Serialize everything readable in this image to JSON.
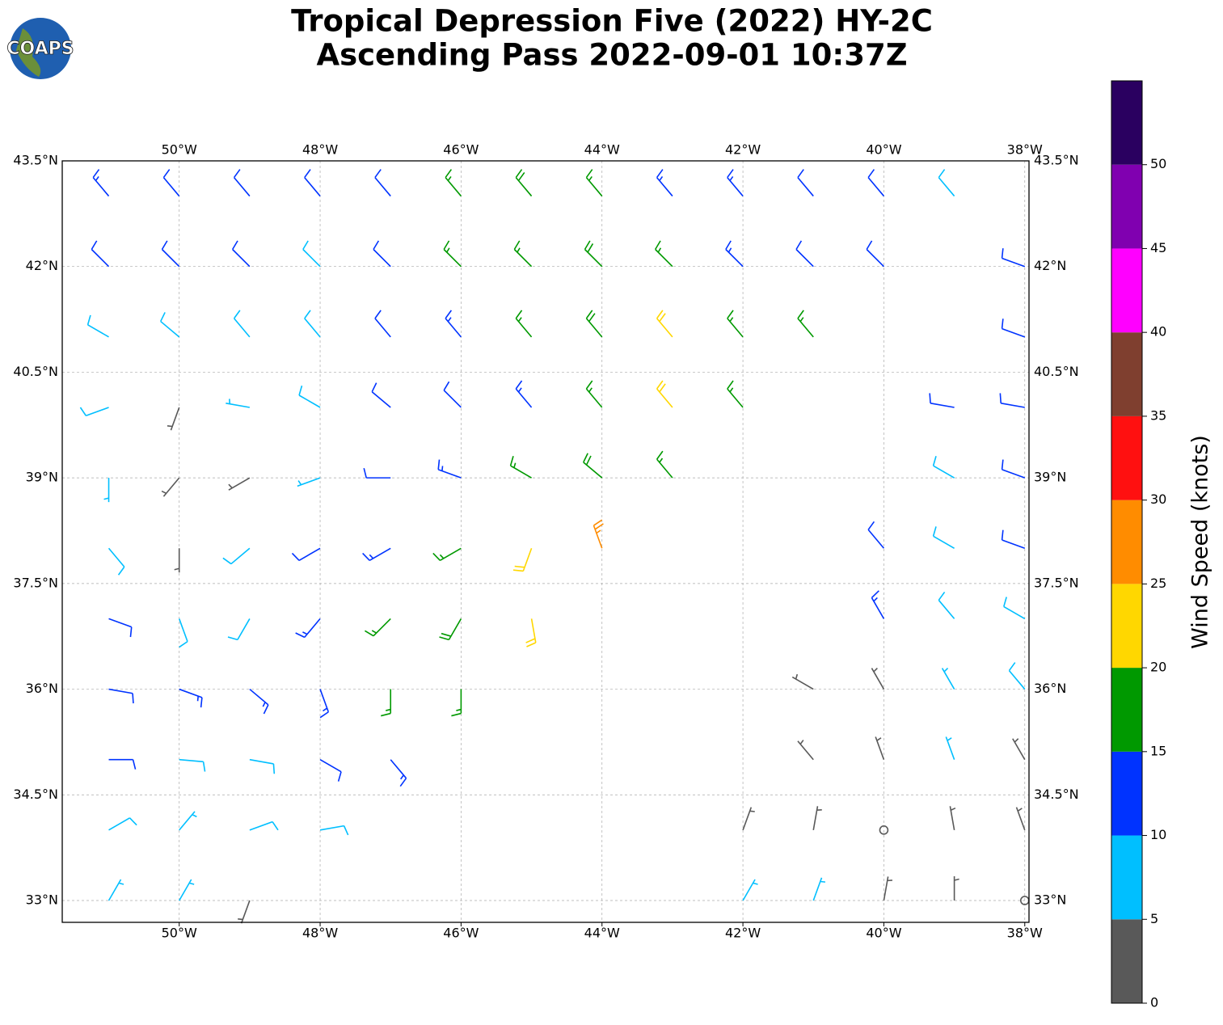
{
  "chart_data": {
    "type": "wind_barbs",
    "title": "Tropical Depression Five (2022) HY-2C",
    "subtitle": "Ascending Pass 2022-09-01 10:37Z",
    "logo_text": "COAPS",
    "xlim": [
      -51.66,
      -37.94
    ],
    "ylim": [
      32.69,
      43.5
    ],
    "xticks": [
      {
        "value": -50,
        "label": "50°W"
      },
      {
        "value": -48,
        "label": "48°W"
      },
      {
        "value": -46,
        "label": "46°W"
      },
      {
        "value": -44,
        "label": "44°W"
      },
      {
        "value": -42,
        "label": "42°W"
      },
      {
        "value": -40,
        "label": "40°W"
      },
      {
        "value": -38,
        "label": "38°W"
      }
    ],
    "yticks": [
      {
        "value": 33,
        "label": "33°N"
      },
      {
        "value": 34.5,
        "label": "34.5°N"
      },
      {
        "value": 36,
        "label": "36°N"
      },
      {
        "value": 37.5,
        "label": "37.5°N"
      },
      {
        "value": 39,
        "label": "39°N"
      },
      {
        "value": 40.5,
        "label": "40.5°N"
      },
      {
        "value": 42,
        "label": "42°N"
      },
      {
        "value": 43.5,
        "label": "43.5°N"
      }
    ],
    "grid": true,
    "colorbar": {
      "label": "Wind Speed (knots)",
      "levels": [
        0,
        5,
        10,
        15,
        20,
        25,
        30,
        35,
        40,
        45,
        50,
        55
      ],
      "colors": [
        "#595959",
        "#00bfff",
        "#0033ff",
        "#009900",
        "#ffd700",
        "#ff8c00",
        "#ff1010",
        "#7f3f2f",
        "#ff00ff",
        "#8000b0",
        "#2a0060"
      ],
      "ticks": [
        0,
        5,
        10,
        15,
        20,
        25,
        30,
        35,
        40,
        45,
        50
      ]
    },
    "barbs": [
      {
        "lon": -51,
        "lat": 43,
        "speed": 14,
        "dir": 320
      },
      {
        "lon": -50,
        "lat": 43,
        "speed": 12,
        "dir": 320
      },
      {
        "lon": -49,
        "lat": 43,
        "speed": 12,
        "dir": 320
      },
      {
        "lon": -48,
        "lat": 43,
        "speed": 10,
        "dir": 320
      },
      {
        "lon": -47,
        "lat": 43,
        "speed": 12,
        "dir": 320
      },
      {
        "lon": -46,
        "lat": 43,
        "speed": 17,
        "dir": 320
      },
      {
        "lon": -45,
        "lat": 43,
        "speed": 18,
        "dir": 320
      },
      {
        "lon": -44,
        "lat": 43,
        "speed": 17,
        "dir": 320
      },
      {
        "lon": -43,
        "lat": 43,
        "speed": 14,
        "dir": 320
      },
      {
        "lon": -42,
        "lat": 43,
        "speed": 13,
        "dir": 320
      },
      {
        "lon": -41,
        "lat": 43,
        "speed": 12,
        "dir": 320
      },
      {
        "lon": -40,
        "lat": 43,
        "speed": 11,
        "dir": 320
      },
      {
        "lon": -39,
        "lat": 43,
        "speed": 8,
        "dir": 320
      },
      {
        "lon": -51,
        "lat": 42,
        "speed": 12,
        "dir": 315
      },
      {
        "lon": -50,
        "lat": 42,
        "speed": 12,
        "dir": 315
      },
      {
        "lon": -49,
        "lat": 42,
        "speed": 10,
        "dir": 315
      },
      {
        "lon": -48,
        "lat": 42,
        "speed": 8,
        "dir": 315
      },
      {
        "lon": -47,
        "lat": 42,
        "speed": 12,
        "dir": 315
      },
      {
        "lon": -46,
        "lat": 42,
        "speed": 15,
        "dir": 315
      },
      {
        "lon": -45,
        "lat": 42,
        "speed": 17,
        "dir": 315
      },
      {
        "lon": -44,
        "lat": 42,
        "speed": 18,
        "dir": 315
      },
      {
        "lon": -43,
        "lat": 42,
        "speed": 17,
        "dir": 315
      },
      {
        "lon": -42,
        "lat": 42,
        "speed": 14,
        "dir": 315
      },
      {
        "lon": -41,
        "lat": 42,
        "speed": 12,
        "dir": 315
      },
      {
        "lon": -40,
        "lat": 42,
        "speed": 11,
        "dir": 315
      },
      {
        "lon": -51,
        "lat": 41,
        "speed": 8,
        "dir": 300
      },
      {
        "lon": -50,
        "lat": 41,
        "speed": 9,
        "dir": 310
      },
      {
        "lon": -49,
        "lat": 41,
        "speed": 9,
        "dir": 320
      },
      {
        "lon": -48,
        "lat": 41,
        "speed": 8,
        "dir": 320
      },
      {
        "lon": -47,
        "lat": 41,
        "speed": 11,
        "dir": 320
      },
      {
        "lon": -46,
        "lat": 41,
        "speed": 13,
        "dir": 320
      },
      {
        "lon": -45,
        "lat": 41,
        "speed": 16,
        "dir": 320
      },
      {
        "lon": -44,
        "lat": 41,
        "speed": 18,
        "dir": 320
      },
      {
        "lon": -43,
        "lat": 41,
        "speed": 22,
        "dir": 320
      },
      {
        "lon": -42,
        "lat": 41,
        "speed": 17,
        "dir": 320
      },
      {
        "lon": -41,
        "lat": 41,
        "speed": 15,
        "dir": 320
      },
      {
        "lon": -51,
        "lat": 40,
        "speed": 8,
        "dir": 250
      },
      {
        "lon": -50,
        "lat": 40,
        "speed": 3,
        "dir": 200
      },
      {
        "lon": -49,
        "lat": 40,
        "speed": 7,
        "dir": 280
      },
      {
        "lon": -48,
        "lat": 40,
        "speed": 8,
        "dir": 300
      },
      {
        "lon": -47,
        "lat": 40,
        "speed": 10,
        "dir": 310
      },
      {
        "lon": -46,
        "lat": 40,
        "speed": 12,
        "dir": 315
      },
      {
        "lon": -45,
        "lat": 40,
        "speed": 14,
        "dir": 320
      },
      {
        "lon": -44,
        "lat": 40,
        "speed": 17,
        "dir": 320
      },
      {
        "lon": -43,
        "lat": 40,
        "speed": 22,
        "dir": 320
      },
      {
        "lon": -42,
        "lat": 40,
        "speed": 17,
        "dir": 320
      },
      {
        "lon": -51,
        "lat": 39,
        "speed": 6,
        "dir": 180
      },
      {
        "lon": -50,
        "lat": 39,
        "speed": 3,
        "dir": 220
      },
      {
        "lon": -49,
        "lat": 39,
        "speed": 4,
        "dir": 240
      },
      {
        "lon": -48,
        "lat": 39,
        "speed": 7,
        "dir": 250
      },
      {
        "lon": -47,
        "lat": 39,
        "speed": 12,
        "dir": 270
      },
      {
        "lon": -46,
        "lat": 39,
        "speed": 14,
        "dir": 290
      },
      {
        "lon": -45,
        "lat": 39,
        "speed": 17,
        "dir": 300
      },
      {
        "lon": -44,
        "lat": 39,
        "speed": 18,
        "dir": 310
      },
      {
        "lon": -43,
        "lat": 39,
        "speed": 17,
        "dir": 320
      },
      {
        "lon": -51,
        "lat": 38,
        "speed": 9,
        "dir": 140
      },
      {
        "lon": -50,
        "lat": 38,
        "speed": 4,
        "dir": 180
      },
      {
        "lon": -49,
        "lat": 38,
        "speed": 8,
        "dir": 230
      },
      {
        "lon": -48,
        "lat": 38,
        "speed": 10,
        "dir": 240
      },
      {
        "lon": -47,
        "lat": 38,
        "speed": 13,
        "dir": 240
      },
      {
        "lon": -46,
        "lat": 38,
        "speed": 16,
        "dir": 240
      },
      {
        "lon": -45,
        "lat": 38,
        "speed": 22,
        "dir": 200
      },
      {
        "lon": -44,
        "lat": 38,
        "speed": 27,
        "dir": 340
      },
      {
        "lon": -51,
        "lat": 37,
        "speed": 12,
        "dir": 110
      },
      {
        "lon": -50,
        "lat": 37,
        "speed": 8,
        "dir": 160
      },
      {
        "lon": -49,
        "lat": 37,
        "speed": 9,
        "dir": 210
      },
      {
        "lon": -48,
        "lat": 37,
        "speed": 13,
        "dir": 220
      },
      {
        "lon": -47,
        "lat": 37,
        "speed": 16,
        "dir": 225
      },
      {
        "lon": -46,
        "lat": 37,
        "speed": 18,
        "dir": 210
      },
      {
        "lon": -45,
        "lat": 37,
        "speed": 22,
        "dir": 170
      },
      {
        "lon": -51,
        "lat": 36,
        "speed": 12,
        "dir": 100
      },
      {
        "lon": -50,
        "lat": 36,
        "speed": 13,
        "dir": 110
      },
      {
        "lon": -49,
        "lat": 36,
        "speed": 13,
        "dir": 130
      },
      {
        "lon": -48,
        "lat": 36,
        "speed": 14,
        "dir": 160
      },
      {
        "lon": -47,
        "lat": 36,
        "speed": 16,
        "dir": 180
      },
      {
        "lon": -46,
        "lat": 36,
        "speed": 17,
        "dir": 180
      },
      {
        "lon": -51,
        "lat": 35,
        "speed": 10,
        "dir": 90
      },
      {
        "lon": -50,
        "lat": 35,
        "speed": 9,
        "dir": 95
      },
      {
        "lon": -49,
        "lat": 35,
        "speed": 9,
        "dir": 100
      },
      {
        "lon": -48,
        "lat": 35,
        "speed": 12,
        "dir": 120
      },
      {
        "lon": -47,
        "lat": 35,
        "speed": 13,
        "dir": 140
      },
      {
        "lon": -51,
        "lat": 34,
        "speed": 8,
        "dir": 60
      },
      {
        "lon": -50,
        "lat": 34,
        "speed": 7,
        "dir": 40
      },
      {
        "lon": -49,
        "lat": 34,
        "speed": 8,
        "dir": 70
      },
      {
        "lon": -48,
        "lat": 34,
        "speed": 8,
        "dir": 80
      },
      {
        "lon": -51,
        "lat": 33,
        "speed": 7,
        "dir": 30
      },
      {
        "lon": -50,
        "lat": 33,
        "speed": 6,
        "dir": 30
      },
      {
        "lon": -49,
        "lat": 33,
        "speed": 3,
        "dir": 200
      },
      {
        "lon": -38,
        "lat": 42,
        "speed": 12,
        "dir": 290
      },
      {
        "lon": -38,
        "lat": 41,
        "speed": 12,
        "dir": 290
      },
      {
        "lon": -39,
        "lat": 40,
        "speed": 12,
        "dir": 280
      },
      {
        "lon": -38,
        "lat": 40,
        "speed": 12,
        "dir": 280
      },
      {
        "lon": -39,
        "lat": 39,
        "speed": 8,
        "dir": 300
      },
      {
        "lon": -38,
        "lat": 39,
        "speed": 10,
        "dir": 290
      },
      {
        "lon": -40,
        "lat": 38,
        "speed": 12,
        "dir": 320
      },
      {
        "lon": -39,
        "lat": 38,
        "speed": 9,
        "dir": 300
      },
      {
        "lon": -38,
        "lat": 38,
        "speed": 11,
        "dir": 290
      },
      {
        "lon": -40,
        "lat": 37,
        "speed": 13,
        "dir": 330
      },
      {
        "lon": -39,
        "lat": 37,
        "speed": 8,
        "dir": 320
      },
      {
        "lon": -38,
        "lat": 37,
        "speed": 9,
        "dir": 300
      },
      {
        "lon": -41,
        "lat": 36,
        "speed": 3,
        "dir": 300
      },
      {
        "lon": -40,
        "lat": 36,
        "speed": 3,
        "dir": 330
      },
      {
        "lon": -39,
        "lat": 36,
        "speed": 7,
        "dir": 330
      },
      {
        "lon": -38,
        "lat": 36,
        "speed": 8,
        "dir": 320
      },
      {
        "lon": -41,
        "lat": 35,
        "speed": 4,
        "dir": 320
      },
      {
        "lon": -40,
        "lat": 35,
        "speed": 3,
        "dir": 340
      },
      {
        "lon": -39,
        "lat": 35,
        "speed": 6,
        "dir": 340
      },
      {
        "lon": -38,
        "lat": 35,
        "speed": 4,
        "dir": 330
      },
      {
        "lon": -42,
        "lat": 34,
        "speed": 4,
        "dir": 20
      },
      {
        "lon": -41,
        "lat": 34,
        "speed": 3,
        "dir": 10
      },
      {
        "lon": -40,
        "lat": 34,
        "speed": 2,
        "dir": 0
      },
      {
        "lon": -39,
        "lat": 34,
        "speed": 3,
        "dir": 350
      },
      {
        "lon": -38,
        "lat": 34,
        "speed": 3,
        "dir": 340
      },
      {
        "lon": -42,
        "lat": 33,
        "speed": 6,
        "dir": 30
      },
      {
        "lon": -41,
        "lat": 33,
        "speed": 5,
        "dir": 20
      },
      {
        "lon": -40,
        "lat": 33,
        "speed": 4,
        "dir": 10
      },
      {
        "lon": -39,
        "lat": 33,
        "speed": 4,
        "dir": 0
      },
      {
        "lon": -38,
        "lat": 33,
        "speed": 2,
        "dir": 0
      }
    ]
  }
}
